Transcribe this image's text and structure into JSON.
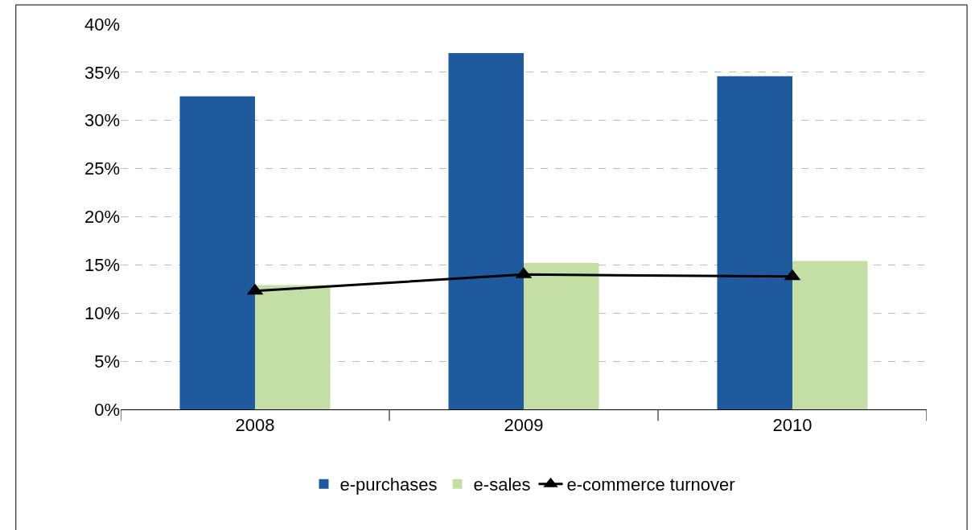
{
  "chart_data": {
    "type": "bar",
    "categories": [
      "2008",
      "2009",
      "2010"
    ],
    "series": [
      {
        "name": "e-purchases",
        "color": "#1f5a9e",
        "values": [
          32.5,
          37.0,
          34.6
        ]
      },
      {
        "name": "e-sales",
        "color": "#c4dfa5",
        "values": [
          12.9,
          15.2,
          15.4
        ]
      },
      {
        "name": "e-commerce turnover",
        "color": "#000000",
        "type": "line",
        "marker": "triangle",
        "values": [
          12.3,
          14.0,
          13.8
        ]
      }
    ],
    "ylim": [
      0,
      40
    ],
    "yticks": [
      {
        "value": 0,
        "label": "0%"
      },
      {
        "value": 5,
        "label": "5%"
      },
      {
        "value": 10,
        "label": "10%"
      },
      {
        "value": 15,
        "label": "15%"
      },
      {
        "value": 20,
        "label": "20%"
      },
      {
        "value": 25,
        "label": "25%"
      },
      {
        "value": 30,
        "label": "30%"
      },
      {
        "value": 35,
        "label": "35%"
      },
      {
        "value": 40,
        "label": "40%"
      }
    ],
    "grid": "y",
    "legend": "bottom"
  }
}
